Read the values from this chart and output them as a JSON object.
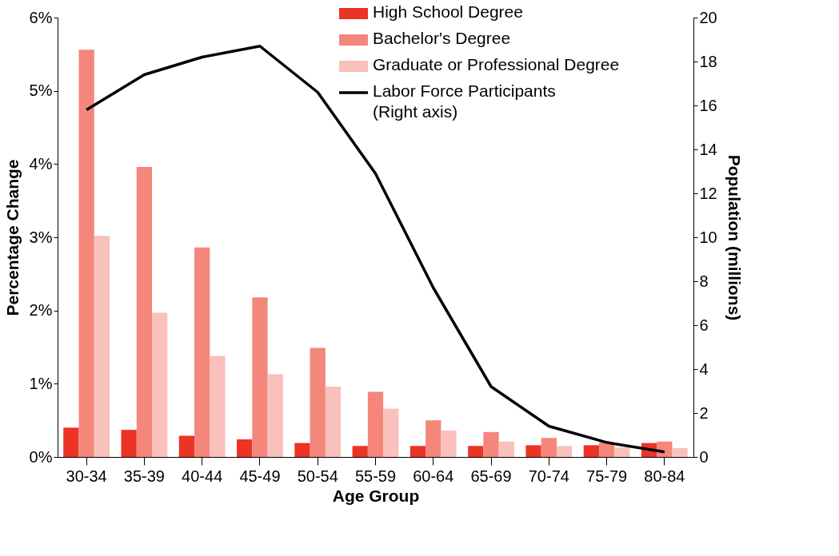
{
  "chart_data": {
    "type": "bar",
    "xlabel": "Age Group",
    "ylabel": "Percentage Change",
    "y2label": "Population (millions)",
    "categories": [
      "30-34",
      "35-39",
      "40-44",
      "45-49",
      "50-54",
      "55-59",
      "60-64",
      "65-69",
      "70-74",
      "75-79",
      "80-84"
    ],
    "series": [
      {
        "name": "High School Degree",
        "color": "#ec3324",
        "values": [
          0.4,
          0.37,
          0.29,
          0.24,
          0.19,
          0.15,
          0.15,
          0.15,
          0.16,
          0.16,
          0.19
        ]
      },
      {
        "name": "Bachelor's Degree",
        "color": "#f4867c",
        "values": [
          5.56,
          3.96,
          2.86,
          2.18,
          1.49,
          0.89,
          0.5,
          0.34,
          0.26,
          0.2,
          0.21
        ]
      },
      {
        "name": "Graduate or Professional Degree",
        "color": "#f9c0bc",
        "values": [
          3.02,
          1.97,
          1.38,
          1.13,
          0.96,
          0.66,
          0.36,
          0.21,
          0.15,
          0.13,
          0.12
        ]
      },
      {
        "name": "Labor Force Participants\n(Right axis)",
        "color": "#000000",
        "type": "line",
        "axis": "y2",
        "values": [
          15.8,
          17.4,
          18.2,
          18.7,
          16.6,
          12.9,
          7.7,
          3.2,
          1.4,
          0.66,
          0.23
        ]
      }
    ],
    "ylim": [
      0,
      6
    ],
    "yticks": [
      {
        "value": 0,
        "label": "0%"
      },
      {
        "value": 1,
        "label": "1%"
      },
      {
        "value": 2,
        "label": "2%"
      },
      {
        "value": 3,
        "label": "3%"
      },
      {
        "value": 4,
        "label": "4%"
      },
      {
        "value": 5,
        "label": "5%"
      },
      {
        "value": 6,
        "label": "6%"
      }
    ],
    "y2lim": [
      0,
      20
    ],
    "y2ticks": [
      0,
      2,
      4,
      6,
      8,
      10,
      12,
      14,
      16,
      18,
      20
    ],
    "legend": "top right",
    "grid": false
  }
}
